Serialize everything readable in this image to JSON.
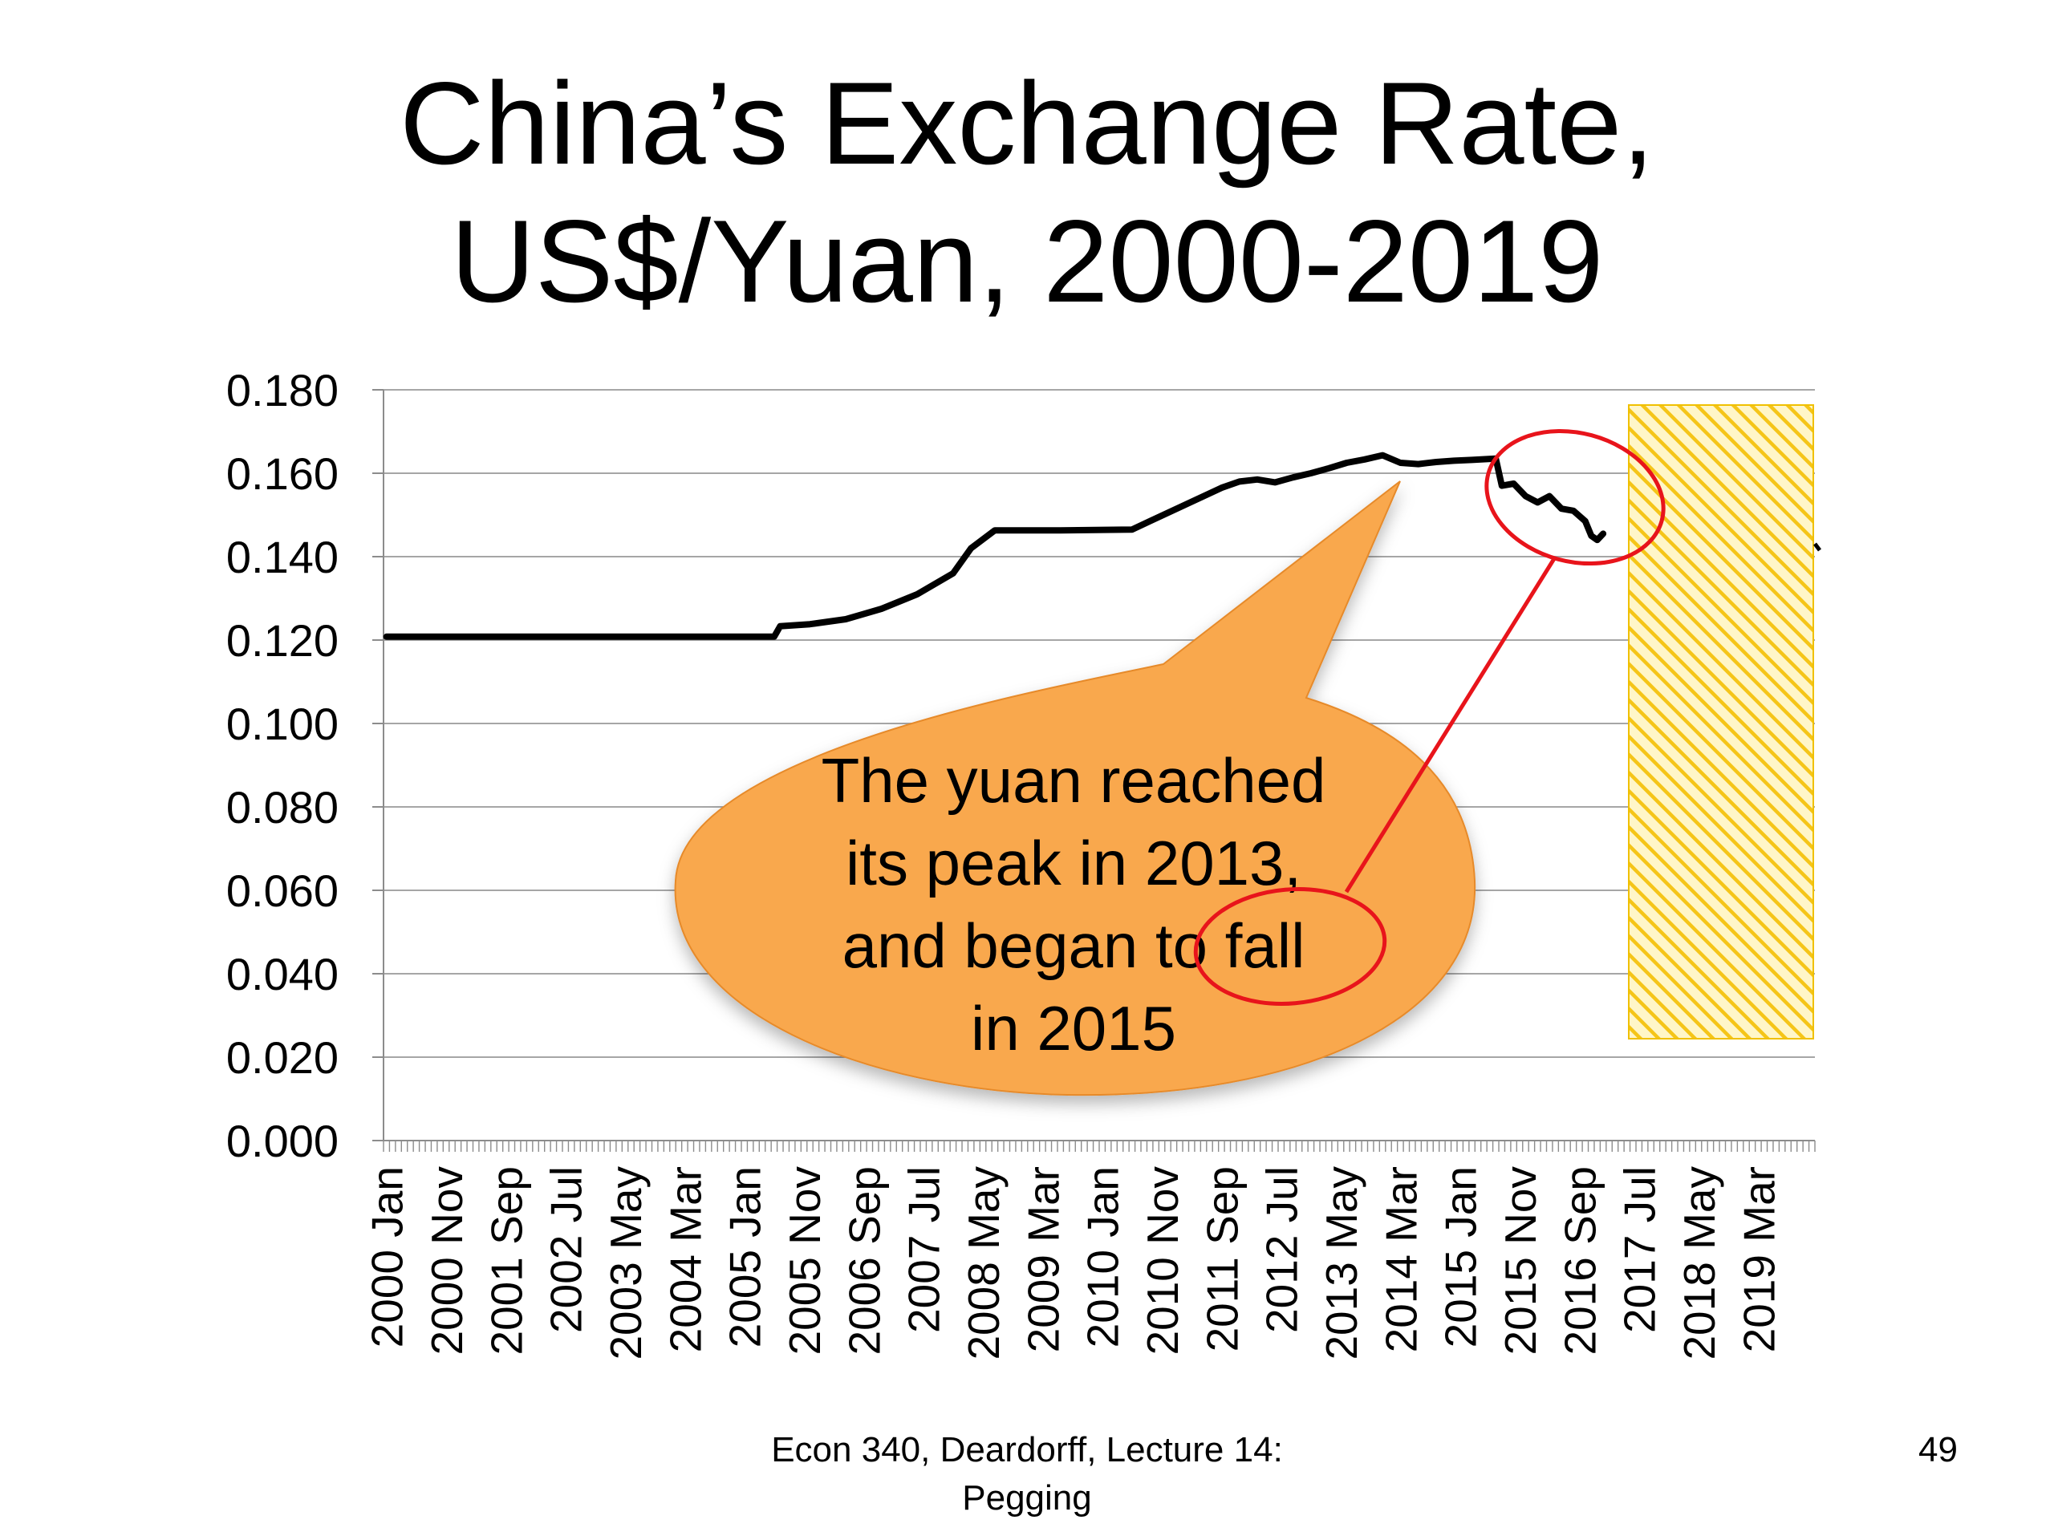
{
  "title_line1": "China’s Exchange Rate,",
  "title_line2": "US$/Yuan, 2000-2019",
  "callout_lines": [
    "The yuan reached",
    "its peak in 2013,",
    "and began to fall",
    "in 2015"
  ],
  "footer_line1": "Econ 340, Deardorff, Lecture 14:",
  "footer_line2": "Pegging",
  "page_number": "49",
  "colors": {
    "line": "#000000",
    "callout_fill": "#f9a84d",
    "annotation_red": "#e8141b",
    "hatch_yellow": "#f5c518",
    "grid": "#a6a6a6"
  },
  "chart_data": {
    "type": "line",
    "title": "",
    "xlabel": "",
    "ylabel": "",
    "ylim": [
      0,
      0.18
    ],
    "yticks": [
      "0.000",
      "0.020",
      "0.040",
      "0.060",
      "0.080",
      "0.100",
      "0.120",
      "0.140",
      "0.160",
      "0.180"
    ],
    "grid": true,
    "x_tick_labels": [
      "2000 Jan",
      "2000 Nov",
      "2001 Sep",
      "2002 Jul",
      "2003 May",
      "2004 Mar",
      "2005 Jan",
      "2005 Nov",
      "2006 Sep",
      "2007 Jul",
      "2008 May",
      "2009 Mar",
      "2010 Jan",
      "2010 Nov",
      "2011 Sep",
      "2012 Jul",
      "2013 May",
      "2014 Mar",
      "2015 Jan",
      "2015 Nov",
      "2016 Sep",
      "2017 Jul",
      "2018 May",
      "2019 Mar"
    ],
    "x_start": "2000 Jan",
    "x_end": "2019 Dec",
    "series": [
      {
        "points": [
          [
            "2000 Jan",
            0.1208
          ],
          [
            "2005 Jun",
            0.1208
          ],
          [
            "2005 Jul",
            0.1233
          ],
          [
            "2005 Dec",
            0.1238
          ],
          [
            "2006 Jun",
            0.125
          ],
          [
            "2006 Dec",
            0.1275
          ],
          [
            "2007 Jun",
            0.131
          ],
          [
            "2007 Dec",
            0.136
          ],
          [
            "2008 Mar",
            0.142
          ],
          [
            "2008 Jul",
            0.1463
          ],
          [
            "2009 Jun",
            0.1463
          ],
          [
            "2010 Jun",
            0.1465
          ],
          [
            "2010 Sep",
            0.1485
          ],
          [
            "2010 Dec",
            0.1505
          ],
          [
            "2011 Mar",
            0.1525
          ],
          [
            "2011 Jun",
            0.1545
          ],
          [
            "2011 Sep",
            0.1565
          ],
          [
            "2011 Dec",
            0.158
          ],
          [
            "2012 Mar",
            0.1585
          ],
          [
            "2012 Jun",
            0.1578
          ],
          [
            "2012 Sep",
            0.159
          ],
          [
            "2012 Dec",
            0.16
          ],
          [
            "2013 Mar",
            0.1612
          ],
          [
            "2013 Jun",
            0.1625
          ],
          [
            "2013 Sep",
            0.1633
          ],
          [
            "2013 Dec",
            0.1643
          ],
          [
            "2014 Mar",
            0.1625
          ],
          [
            "2014 Jun",
            0.1622
          ],
          [
            "2014 Sep",
            0.1627
          ],
          [
            "2014 Dec",
            0.163
          ],
          [
            "2015 Mar",
            0.1632
          ],
          [
            "2015 Jul",
            0.1635
          ],
          [
            "2015 Aug",
            0.157
          ],
          [
            "2015 Oct",
            0.1575
          ],
          [
            "2015 Dec",
            0.1545
          ],
          [
            "2016 Feb",
            0.153
          ],
          [
            "2016 Apr",
            0.1545
          ],
          [
            "2016 Jun",
            0.1515
          ],
          [
            "2016 Aug",
            0.151
          ],
          [
            "2016 Oct",
            0.1485
          ],
          [
            "2016 Nov",
            0.145
          ],
          [
            "2016 Dec",
            0.144
          ],
          [
            "2017 Jan",
            0.1455
          ]
        ]
      }
    ],
    "annotations": [
      {
        "text_ref": "callout_lines",
        "points_to": "2013 Mar"
      }
    ]
  }
}
